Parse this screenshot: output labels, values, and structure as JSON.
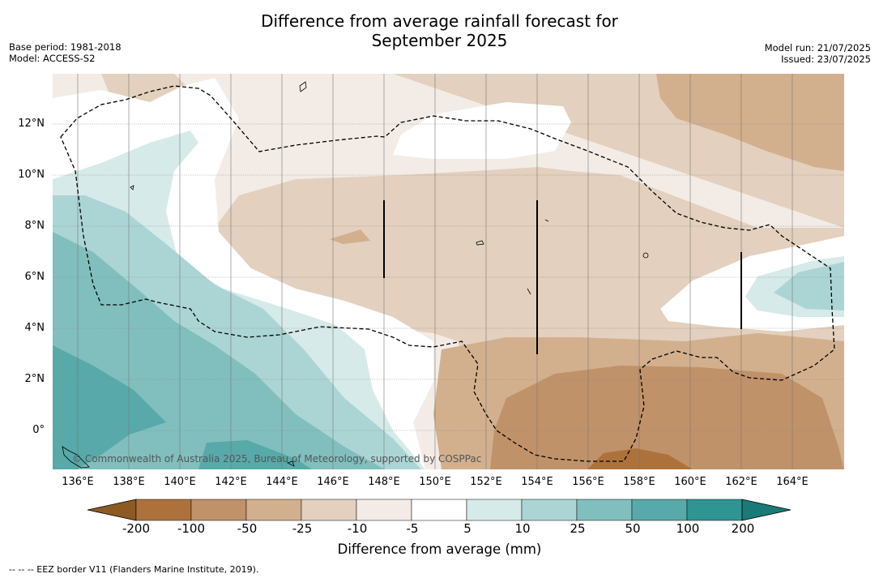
{
  "title_line1": "Difference from average rainfall forecast for",
  "title_line2": "September 2025",
  "base_period": "Base period: 1981-2018",
  "model": "Model: ACCESS-S2",
  "model_run": "Model run: 21/07/2025",
  "issued": "Issued: 23/07/2025",
  "lat_labels": [
    "12°N",
    "10°N",
    "8°N",
    "6°N",
    "4°N",
    "2°N",
    "0°"
  ],
  "lon_labels": [
    "136°E",
    "138°E",
    "140°E",
    "142°E",
    "144°E",
    "146°E",
    "148°E",
    "150°E",
    "152°E",
    "154°E",
    "156°E",
    "158°E",
    "160°E",
    "162°E",
    "164°E"
  ],
  "copyright": "© Commonwealth of Australia 2025, Bureau of Meteorology, supported by COSPPac",
  "colorbar": {
    "ticks": [
      "-200",
      "-100",
      "-50",
      "-25",
      "-10",
      "-5",
      "5",
      "10",
      "25",
      "50",
      "100",
      "200"
    ],
    "colors": [
      "#8d5a24",
      "#ad723b",
      "#c0926a",
      "#d2b08e",
      "#e3d0be",
      "#f3ece6",
      "#ffffff",
      "#d6eae9",
      "#abd5d4",
      "#80bfbe",
      "#57aaa9",
      "#2f9592",
      "#1a7a77"
    ],
    "label": "Difference from average (mm)"
  },
  "footnote": "--  --  -- EEZ border V11 (Flanders Marine Institute, 2019)."
}
